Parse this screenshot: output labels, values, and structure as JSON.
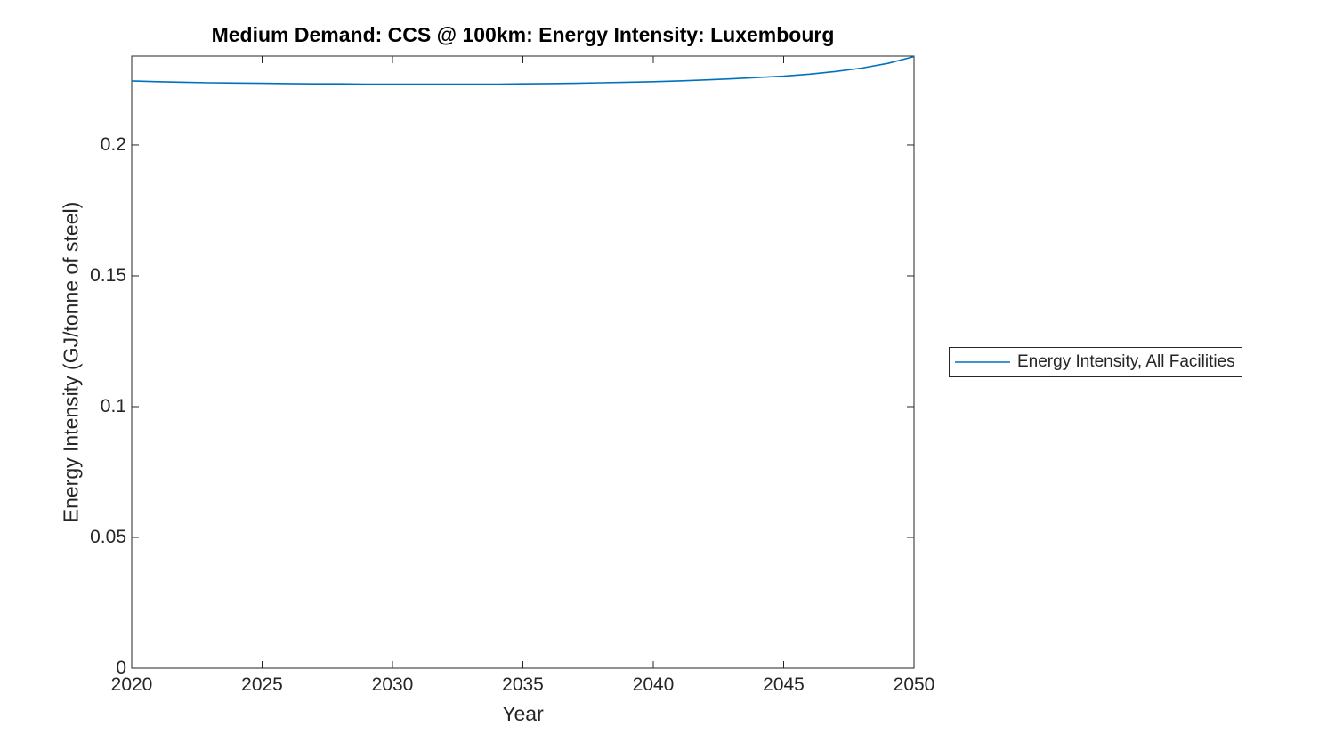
{
  "chart_data": {
    "type": "line",
    "title": "Medium Demand: CCS @ 100km: Energy Intensity: Luxembourg",
    "xlabel": "Year",
    "ylabel": "Energy Intensity (GJ/tonne of steel)",
    "xlim": [
      2020,
      2050
    ],
    "ylim": [
      0,
      0.234
    ],
    "grid": false,
    "xticks": {
      "values": [
        2020,
        2025,
        2030,
        2035,
        2040,
        2045,
        2050
      ],
      "labels": [
        "2020",
        "2025",
        "2030",
        "2035",
        "2040",
        "2045",
        "2050"
      ]
    },
    "yticks": {
      "values": [
        0,
        0.05,
        0.1,
        0.15,
        0.2
      ],
      "labels": [
        "0",
        "0.05",
        "0.1",
        "0.15",
        "0.2"
      ]
    },
    "legend": {
      "position": "right-outside",
      "entries": [
        {
          "label": "Energy Intensity, All Facilities",
          "color": "#0072BD"
        }
      ]
    },
    "series": [
      {
        "name": "Energy Intensity, All Facilities",
        "color": "#0072BD",
        "x": [
          2020,
          2021,
          2022,
          2023,
          2024,
          2025,
          2026,
          2027,
          2028,
          2029,
          2030,
          2031,
          2032,
          2033,
          2034,
          2035,
          2036,
          2037,
          2038,
          2039,
          2040,
          2041,
          2042,
          2043,
          2044,
          2045,
          2046,
          2047,
          2048,
          2049,
          2050
        ],
        "y": [
          0.2245,
          0.2242,
          0.224,
          0.2238,
          0.2237,
          0.2236,
          0.2235,
          0.2234,
          0.2234,
          0.2233,
          0.2233,
          0.2233,
          0.2233,
          0.2233,
          0.2233,
          0.2234,
          0.2235,
          0.2236,
          0.2238,
          0.224,
          0.2242,
          0.2245,
          0.2249,
          0.2253,
          0.2258,
          0.2263,
          0.2271,
          0.2281,
          0.2294,
          0.2312,
          0.2338
        ]
      }
    ]
  },
  "colors": {
    "line": "#0072BD",
    "axis": "#262626",
    "title": "#000000",
    "background": "#ffffff"
  }
}
